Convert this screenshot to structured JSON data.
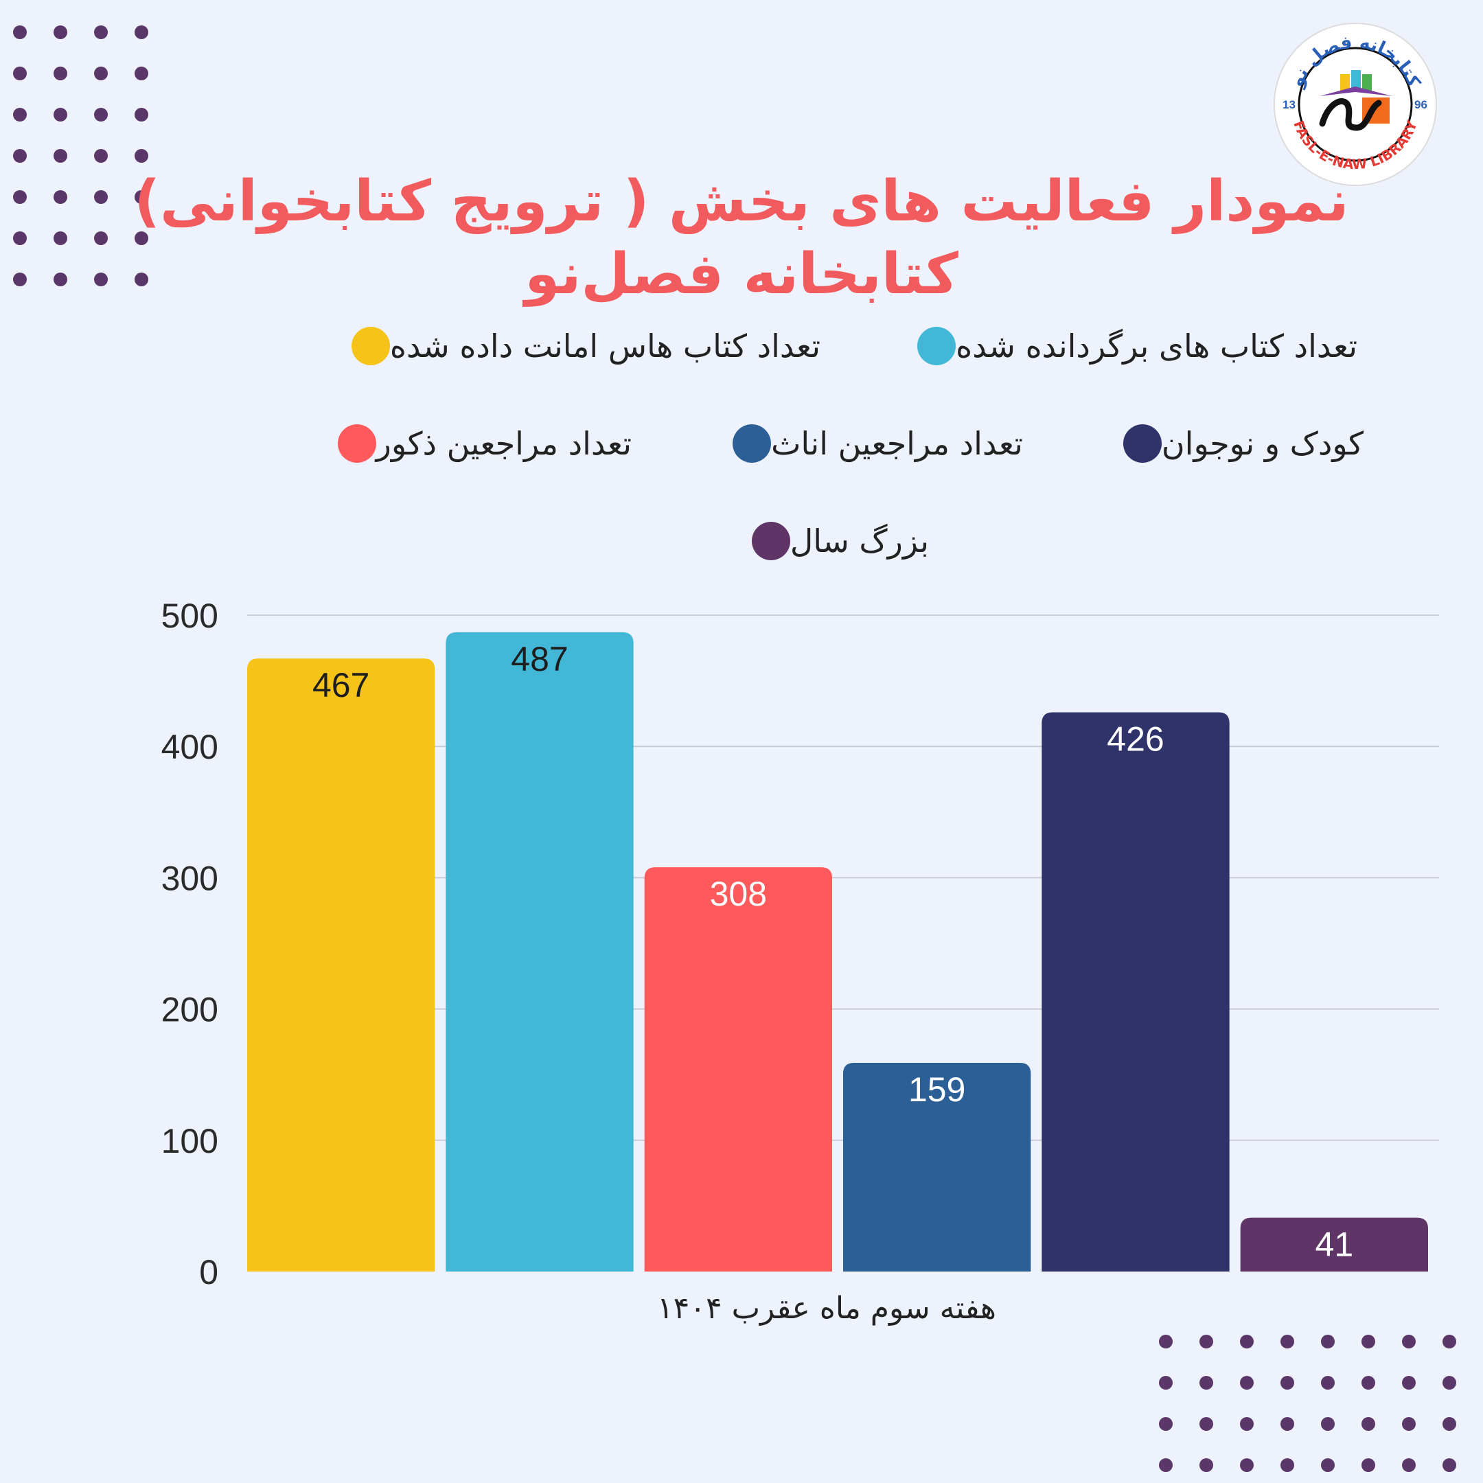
{
  "title": {
    "line1": "نمودار فعالیت های بخش ( ترویج کتابخوانی)",
    "line2": "کتابخانه فصل‌نو"
  },
  "logo": {
    "top_text": "کتابخانه فصل نو",
    "bottom_text": "FASL-E-NAW LIBRARY",
    "year_left": "13",
    "year_right": "96"
  },
  "colors": {
    "background": "#eef2fc",
    "title": "#f15b5e",
    "dots": "#5a3768",
    "grid": "#c9ccd6"
  },
  "chart_data": {
    "type": "bar",
    "categories": [
      "هفته سوم ماه عقرب ۱۴۰۴"
    ],
    "xlabel": "هفته سوم ماه عقرب ۱۴۰۴",
    "ylabel": "",
    "ylim": [
      0,
      500
    ],
    "yticks": [
      0,
      100,
      200,
      300,
      400,
      500
    ],
    "grid": true,
    "legend_position": "top",
    "series": [
      {
        "name": "تعداد کتاب هاس امانت داده شده",
        "values": [
          467
        ],
        "color": "#f6c318",
        "label_color": "#1e1e1e"
      },
      {
        "name": "تعداد کتاب های برگردانده شده",
        "values": [
          487
        ],
        "color": "#42b8d6",
        "label_color": "#1e1e1e"
      },
      {
        "name": "تعداد مراجعین ذکور",
        "values": [
          308
        ],
        "color": "#ff5a5b",
        "label_color": "#ffffff"
      },
      {
        "name": "تعداد مراجعین اناث",
        "values": [
          159
        ],
        "color": "#2d5f97",
        "label_color": "#ffffff"
      },
      {
        "name": "کودک و نوجوان",
        "values": [
          426
        ],
        "color": "#2f336a",
        "label_color": "#ffffff"
      },
      {
        "name": "بزرگ سال",
        "values": [
          41
        ],
        "color": "#5e3566",
        "label_color": "#ffffff"
      }
    ]
  }
}
